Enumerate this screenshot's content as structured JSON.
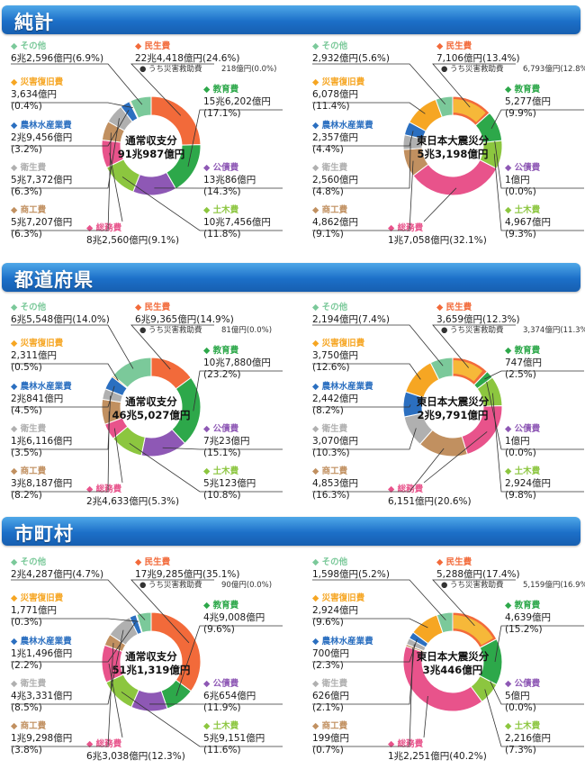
{
  "sections": [
    {
      "title": "純計"
    },
    {
      "title": "都道府県"
    },
    {
      "title": "市町村"
    }
  ],
  "colors": {
    "民生費": "#f26a3a",
    "うち災害救助費": "#f7c53a",
    "教育費": "#2da84a",
    "公債費": "#8e58b5",
    "土木費": "#8cc63f",
    "総務費": "#e8538b",
    "商工費": "#c19060",
    "衛生費": "#b0b0b0",
    "農林水産業費": "#2b6fc0",
    "災害復旧費": "#f6a623",
    "その他": "#7bc99a"
  },
  "chart_data": [
    {
      "type": "pie",
      "section": 0,
      "title": "通常収支分",
      "total": "91兆987億円",
      "slices": [
        {
          "label": "民生費",
          "value": 24.6,
          "text": "22兆4,418億円(24.6%)"
        },
        {
          "label": "うち災害救助費",
          "value": 0.0,
          "text": "218億円(0.0%)"
        },
        {
          "label": "教育費",
          "value": 17.1,
          "text": "15兆6,202億円(17.1%)"
        },
        {
          "label": "公債費",
          "value": 14.3,
          "text": "13兆86億円(14.3%)"
        },
        {
          "label": "土木費",
          "value": 11.8,
          "text": "10兆7,456億円(11.8%)"
        },
        {
          "label": "総務費",
          "value": 9.1,
          "text": "8兆2,560億円(9.1%)"
        },
        {
          "label": "商工費",
          "value": 6.3,
          "text": "5兆7,207億円(6.3%)"
        },
        {
          "label": "衛生費",
          "value": 6.3,
          "text": "5兆7,372億円(6.3%)"
        },
        {
          "label": "農林水産業費",
          "value": 3.2,
          "text": "2兆9,456億円(3.2%)"
        },
        {
          "label": "災害復旧費",
          "value": 0.4,
          "text": "3,634億円(0.4%)"
        },
        {
          "label": "その他",
          "value": 6.9,
          "text": "6兆2,596億円(6.9%)"
        }
      ]
    },
    {
      "type": "pie",
      "section": 0,
      "title": "東日本大震災分",
      "total": "5兆3,198億円",
      "slices": [
        {
          "label": "民生費",
          "value": 13.4,
          "text": "7,106億円(13.4%)"
        },
        {
          "label": "うち災害救助費",
          "value": 12.8,
          "text": "6,793億円(12.8%)"
        },
        {
          "label": "教育費",
          "value": 9.9,
          "text": "5,277億円(9.9%)"
        },
        {
          "label": "公債費",
          "value": 0.0,
          "text": "1億円(0.0%)"
        },
        {
          "label": "土木費",
          "value": 9.3,
          "text": "4,967億円(9.3%)"
        },
        {
          "label": "総務費",
          "value": 32.1,
          "text": "1兆7,058億円(32.1%)"
        },
        {
          "label": "商工費",
          "value": 9.1,
          "text": "4,862億円(9.1%)"
        },
        {
          "label": "衛生費",
          "value": 4.8,
          "text": "2,560億円(4.8%)"
        },
        {
          "label": "農林水産業費",
          "value": 4.4,
          "text": "2,357億円(4.4%)"
        },
        {
          "label": "災害復旧費",
          "value": 11.4,
          "text": "6,078億円(11.4%)"
        },
        {
          "label": "その他",
          "value": 5.6,
          "text": "2,932億円(5.6%)"
        }
      ]
    },
    {
      "type": "pie",
      "section": 1,
      "title": "通常収支分",
      "total": "46兆5,027億円",
      "slices": [
        {
          "label": "民生費",
          "value": 14.9,
          "text": "6兆9,365億円(14.9%)"
        },
        {
          "label": "うち災害救助費",
          "value": 0.0,
          "text": "81億円(0.0%)"
        },
        {
          "label": "教育費",
          "value": 23.2,
          "text": "10兆7,880億円(23.2%)"
        },
        {
          "label": "公債費",
          "value": 15.1,
          "text": "7兆23億円(15.1%)"
        },
        {
          "label": "土木費",
          "value": 10.8,
          "text": "5兆123億円(10.8%)"
        },
        {
          "label": "総務費",
          "value": 5.3,
          "text": "2兆4,633億円(5.3%)"
        },
        {
          "label": "商工費",
          "value": 8.2,
          "text": "3兆8,187億円(8.2%)"
        },
        {
          "label": "衛生費",
          "value": 3.5,
          "text": "1兆6,116億円(3.5%)"
        },
        {
          "label": "農林水産業費",
          "value": 4.5,
          "text": "2兆841億円(4.5%)"
        },
        {
          "label": "災害復旧費",
          "value": 0.5,
          "text": "2,311億円(0.5%)"
        },
        {
          "label": "その他",
          "value": 14.0,
          "text": "6兆5,548億円(14.0%)"
        }
      ]
    },
    {
      "type": "pie",
      "section": 1,
      "title": "東日本大震災分",
      "total": "2兆9,791億円",
      "slices": [
        {
          "label": "民生費",
          "value": 12.3,
          "text": "3,659億円(12.3%)"
        },
        {
          "label": "うち災害救助費",
          "value": 11.3,
          "text": "3,374億円(11.3%)"
        },
        {
          "label": "教育費",
          "value": 2.5,
          "text": "747億円(2.5%)"
        },
        {
          "label": "公債費",
          "value": 0.0,
          "text": "1億円(0.0%)"
        },
        {
          "label": "土木費",
          "value": 9.8,
          "text": "2,924億円(9.8%)"
        },
        {
          "label": "総務費",
          "value": 20.6,
          "text": "6,151億円(20.6%)"
        },
        {
          "label": "商工費",
          "value": 16.3,
          "text": "4,853億円(16.3%)"
        },
        {
          "label": "衛生費",
          "value": 10.3,
          "text": "3,070億円(10.3%)"
        },
        {
          "label": "農林水産業費",
          "value": 8.2,
          "text": "2,442億円(8.2%)"
        },
        {
          "label": "災害復旧費",
          "value": 12.6,
          "text": "3,750億円(12.6%)"
        },
        {
          "label": "その他",
          "value": 7.4,
          "text": "2,194億円(7.4%)"
        }
      ]
    },
    {
      "type": "pie",
      "section": 2,
      "title": "通常収支分",
      "total": "51兆1,319億円",
      "slices": [
        {
          "label": "民生費",
          "value": 35.1,
          "text": "17兆9,285億円(35.1%)"
        },
        {
          "label": "うち災害救助費",
          "value": 0.0,
          "text": "90億円(0.0%)"
        },
        {
          "label": "教育費",
          "value": 9.6,
          "text": "4兆9,008億円(9.6%)"
        },
        {
          "label": "公債費",
          "value": 11.9,
          "text": "6兆654億円(11.9%)"
        },
        {
          "label": "土木費",
          "value": 11.6,
          "text": "5兆9,151億円(11.6%)"
        },
        {
          "label": "総務費",
          "value": 12.3,
          "text": "6兆3,038億円(12.3%)"
        },
        {
          "label": "商工費",
          "value": 3.8,
          "text": "1兆9,298億円(3.8%)"
        },
        {
          "label": "衛生費",
          "value": 8.5,
          "text": "4兆3,331億円(8.5%)"
        },
        {
          "label": "農林水産業費",
          "value": 2.2,
          "text": "1兆1,496億円(2.2%)"
        },
        {
          "label": "災害復旧費",
          "value": 0.3,
          "text": "1,771億円(0.3%)"
        },
        {
          "label": "その他",
          "value": 4.7,
          "text": "2兆4,287億円(4.7%)"
        }
      ]
    },
    {
      "type": "pie",
      "section": 2,
      "title": "東日本大震災分",
      "total": "3兆446億円",
      "slices": [
        {
          "label": "民生費",
          "value": 17.4,
          "text": "5,288億円(17.4%)"
        },
        {
          "label": "うち災害救助費",
          "value": 16.9,
          "text": "5,159億円(16.9%)"
        },
        {
          "label": "教育費",
          "value": 15.2,
          "text": "4,639億円(15.2%)"
        },
        {
          "label": "公債費",
          "value": 0.0,
          "text": "5億円(0.0%)"
        },
        {
          "label": "土木費",
          "value": 7.3,
          "text": "2,216億円(7.3%)"
        },
        {
          "label": "総務費",
          "value": 40.2,
          "text": "1兆2,251億円(40.2%)"
        },
        {
          "label": "商工費",
          "value": 0.7,
          "text": "199億円(0.7%)"
        },
        {
          "label": "衛生費",
          "value": 2.1,
          "text": "626億円(2.1%)"
        },
        {
          "label": "農林水産業費",
          "value": 2.3,
          "text": "700億円(2.3%)"
        },
        {
          "label": "災害復旧費",
          "value": 9.6,
          "text": "2,924億円(9.6%)"
        },
        {
          "label": "その他",
          "value": 5.2,
          "text": "1,598億円(5.2%)"
        }
      ]
    }
  ]
}
